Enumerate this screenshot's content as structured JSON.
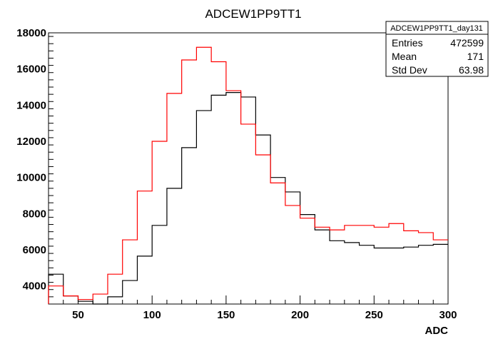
{
  "chart_data": {
    "type": "line",
    "title": "ADCEW1PP9TT1",
    "xlabel": "ADC",
    "ylabel": "",
    "xlim": [
      30,
      300
    ],
    "ylim": [
      3000,
      18000
    ],
    "x_ticks": [
      50,
      100,
      150,
      200,
      250,
      300
    ],
    "y_ticks": [
      4000,
      6000,
      8000,
      10000,
      12000,
      14000,
      16000,
      18000
    ],
    "grid": false,
    "bin_edges": [
      30,
      40,
      50,
      60,
      70,
      80,
      90,
      100,
      110,
      120,
      130,
      140,
      150,
      160,
      170,
      180,
      190,
      200,
      210,
      220,
      230,
      240,
      250,
      260,
      270,
      280,
      290,
      300
    ],
    "series": [
      {
        "color": "#000000",
        "values": [
          4650,
          3450,
          3150,
          3000,
          3400,
          4300,
          5650,
          7350,
          9400,
          11650,
          13700,
          14550,
          14700,
          14450,
          12350,
          10000,
          9200,
          7950,
          7100,
          6500,
          6400,
          6250,
          6100,
          6100,
          6150,
          6250,
          6300
        ]
      },
      {
        "color": "#ff0000",
        "values": [
          4000,
          3450,
          3250,
          3550,
          4650,
          6550,
          9250,
          12000,
          14650,
          16500,
          17200,
          16400,
          14800,
          12950,
          11250,
          9700,
          8450,
          7750,
          7250,
          7100,
          7350,
          7350,
          7250,
          7450,
          7050,
          6950,
          6550
        ]
      }
    ],
    "stats_box": {
      "header": "ADCEW1PP9TT1_day131",
      "rows": [
        {
          "label": "Entries",
          "value": "472599"
        },
        {
          "label": "Mean",
          "value": "171"
        },
        {
          "label": "Std Dev",
          "value": "63.98"
        }
      ]
    }
  }
}
